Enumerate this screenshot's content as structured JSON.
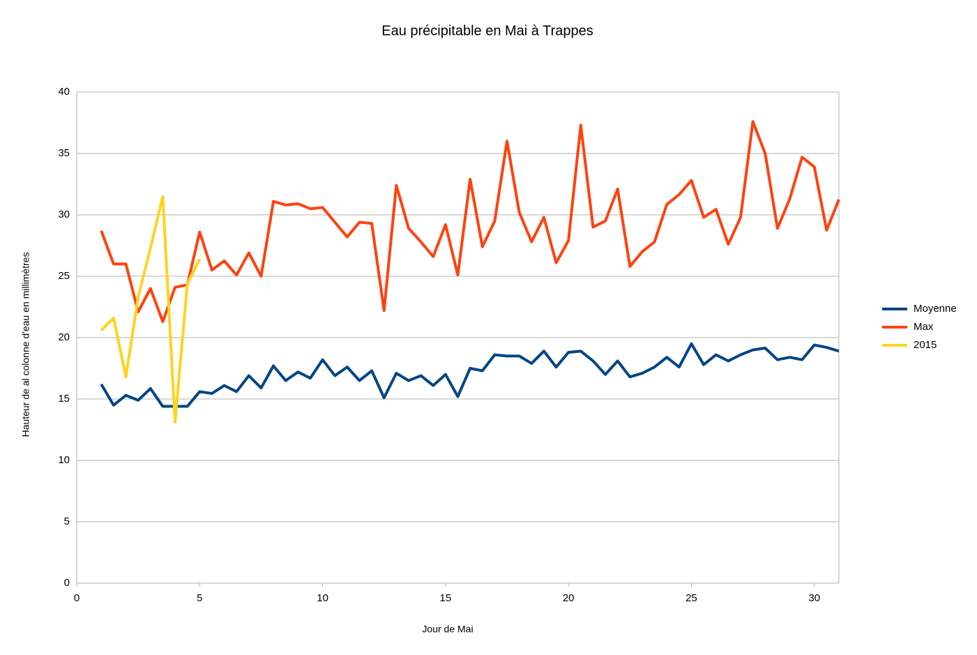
{
  "chart_data": {
    "type": "line",
    "title": "Eau précipitable en Mai à Trappes",
    "x_label": "Jour de Mai",
    "y_label": "Hauteur de al colonne d'eau en millimètres",
    "x": [
      1,
      1.5,
      2,
      2.5,
      3,
      3.5,
      4,
      4.5,
      5,
      5.5,
      6,
      6.5,
      7,
      7.5,
      8,
      8.5,
      9,
      9.5,
      10,
      10.5,
      11,
      11.5,
      12,
      12.5,
      13,
      13.5,
      14,
      14.5,
      15,
      15.5,
      16,
      16.5,
      17,
      17.5,
      18,
      18.5,
      19,
      19.5,
      20,
      20.5,
      21,
      21.5,
      22,
      22.5,
      23,
      23.5,
      24,
      24.5,
      25,
      25.5,
      26,
      26.5,
      27,
      27.5,
      28,
      28.5,
      29,
      29.5,
      30,
      30.5,
      31
    ],
    "series": [
      {
        "name": "Moyenne",
        "color": "#004586",
        "values": [
          16.2,
          14.5,
          15.3,
          14.9,
          15.85,
          14.4,
          14.4,
          14.4,
          15.6,
          15.45,
          16.1,
          15.6,
          16.9,
          15.9,
          17.7,
          16.5,
          17.2,
          16.7,
          18.2,
          16.9,
          17.6,
          16.5,
          17.3,
          15.1,
          17.1,
          16.5,
          16.9,
          16.1,
          17.0,
          15.2,
          17.5,
          17.3,
          18.6,
          18.5,
          18.5,
          17.9,
          18.9,
          17.6,
          18.8,
          18.9,
          18.1,
          17.0,
          18.1,
          16.8,
          17.1,
          17.6,
          18.4,
          17.6,
          19.5,
          17.8,
          18.6,
          18.1,
          18.6,
          19.0,
          19.15,
          18.2,
          18.4,
          18.2,
          19.4,
          19.2,
          18.9
        ]
      },
      {
        "name": "Max",
        "color": "#ff420e",
        "values": [
          28.7,
          26.0,
          26.0,
          22.1,
          24.0,
          21.3,
          24.1,
          24.3,
          28.6,
          25.5,
          26.25,
          25.1,
          26.9,
          25.0,
          31.1,
          30.8,
          30.9,
          30.5,
          30.6,
          29.4,
          28.2,
          29.4,
          29.3,
          22.2,
          32.4,
          28.9,
          27.8,
          26.6,
          29.2,
          25.1,
          32.9,
          27.4,
          29.5,
          36.0,
          30.2,
          27.8,
          29.8,
          26.1,
          27.9,
          37.3,
          29.0,
          29.5,
          32.1,
          25.8,
          27.0,
          27.8,
          30.85,
          31.65,
          32.8,
          29.8,
          30.45,
          27.6,
          29.8,
          37.6,
          35.0,
          28.9,
          31.3,
          34.7,
          33.9,
          28.75,
          31.25
        ]
      },
      {
        "name": "2015",
        "color": "#ffd320",
        "values": [
          20.6,
          21.6,
          16.8,
          23.3,
          27.3,
          31.5,
          13.1,
          24.4,
          26.4,
          null,
          null,
          null,
          null,
          null,
          null,
          null,
          null,
          null,
          null,
          null,
          null,
          null,
          null,
          null,
          null,
          null,
          null,
          null,
          null,
          null,
          null,
          null,
          null,
          null,
          null,
          null,
          null,
          null,
          null,
          null,
          null,
          null,
          null,
          null,
          null,
          null,
          null,
          null,
          null,
          null,
          null,
          null,
          null,
          null,
          null,
          null,
          null,
          null,
          null,
          null,
          null
        ]
      }
    ],
    "xlim": [
      0,
      31
    ],
    "xticks": [
      0,
      5,
      10,
      15,
      20,
      25,
      30
    ],
    "ylim": [
      0,
      40
    ],
    "yticks": [
      0,
      5,
      10,
      15,
      20,
      25,
      30,
      35,
      40
    ],
    "grid": true,
    "legend": "right"
  }
}
